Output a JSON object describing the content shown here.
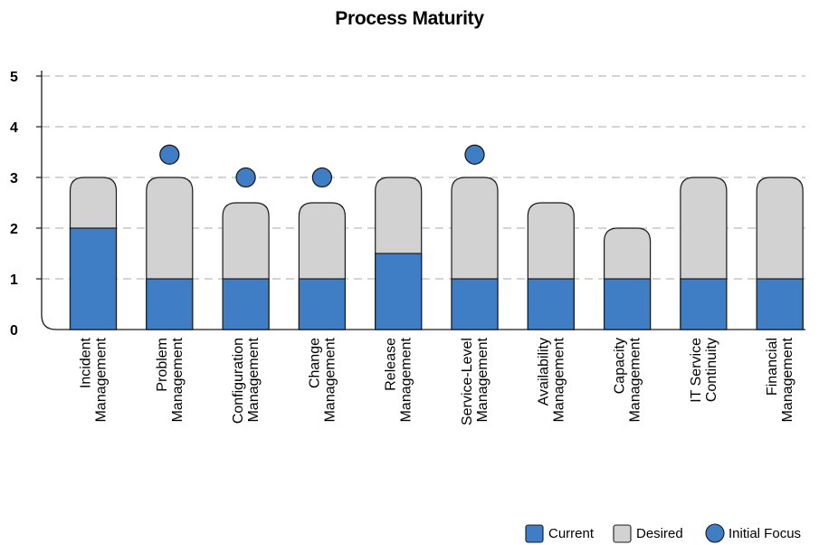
{
  "chart_data": {
    "type": "bar",
    "title": "Process Maturity",
    "xlabel": "",
    "ylabel": "",
    "ylim": [
      0,
      5
    ],
    "yticks": [
      0,
      1,
      2,
      3,
      4,
      5
    ],
    "grid": true,
    "legend_position": "bottom-right",
    "categories": [
      [
        "Incident",
        "Management"
      ],
      [
        "Problem",
        "Management"
      ],
      [
        "Configuration",
        "Management"
      ],
      [
        "Change",
        "Management"
      ],
      [
        "Release",
        "Management"
      ],
      [
        "Service-Level",
        "Management"
      ],
      [
        "Availability",
        "Management"
      ],
      [
        "Capacity",
        "Management"
      ],
      [
        "IT Service",
        "Continuity"
      ],
      [
        "Financial",
        "Management"
      ]
    ],
    "series": [
      {
        "name": "Current",
        "values": [
          2,
          1,
          1,
          1,
          1.5,
          1,
          1,
          1,
          1,
          1
        ]
      },
      {
        "name": "Desired",
        "values": [
          3,
          3,
          2.5,
          2.5,
          3,
          3,
          2.5,
          2,
          3,
          3
        ]
      },
      {
        "name": "Initial Focus",
        "values": [
          null,
          3.45,
          3,
          3,
          null,
          3.45,
          null,
          null,
          null,
          null
        ]
      }
    ],
    "colors": {
      "current": "#3f7ec4",
      "desired": "#d2d2d2",
      "focus": "#3f7ec4",
      "outline": "#1a1a1a",
      "grid": "#a8a8a8"
    }
  }
}
